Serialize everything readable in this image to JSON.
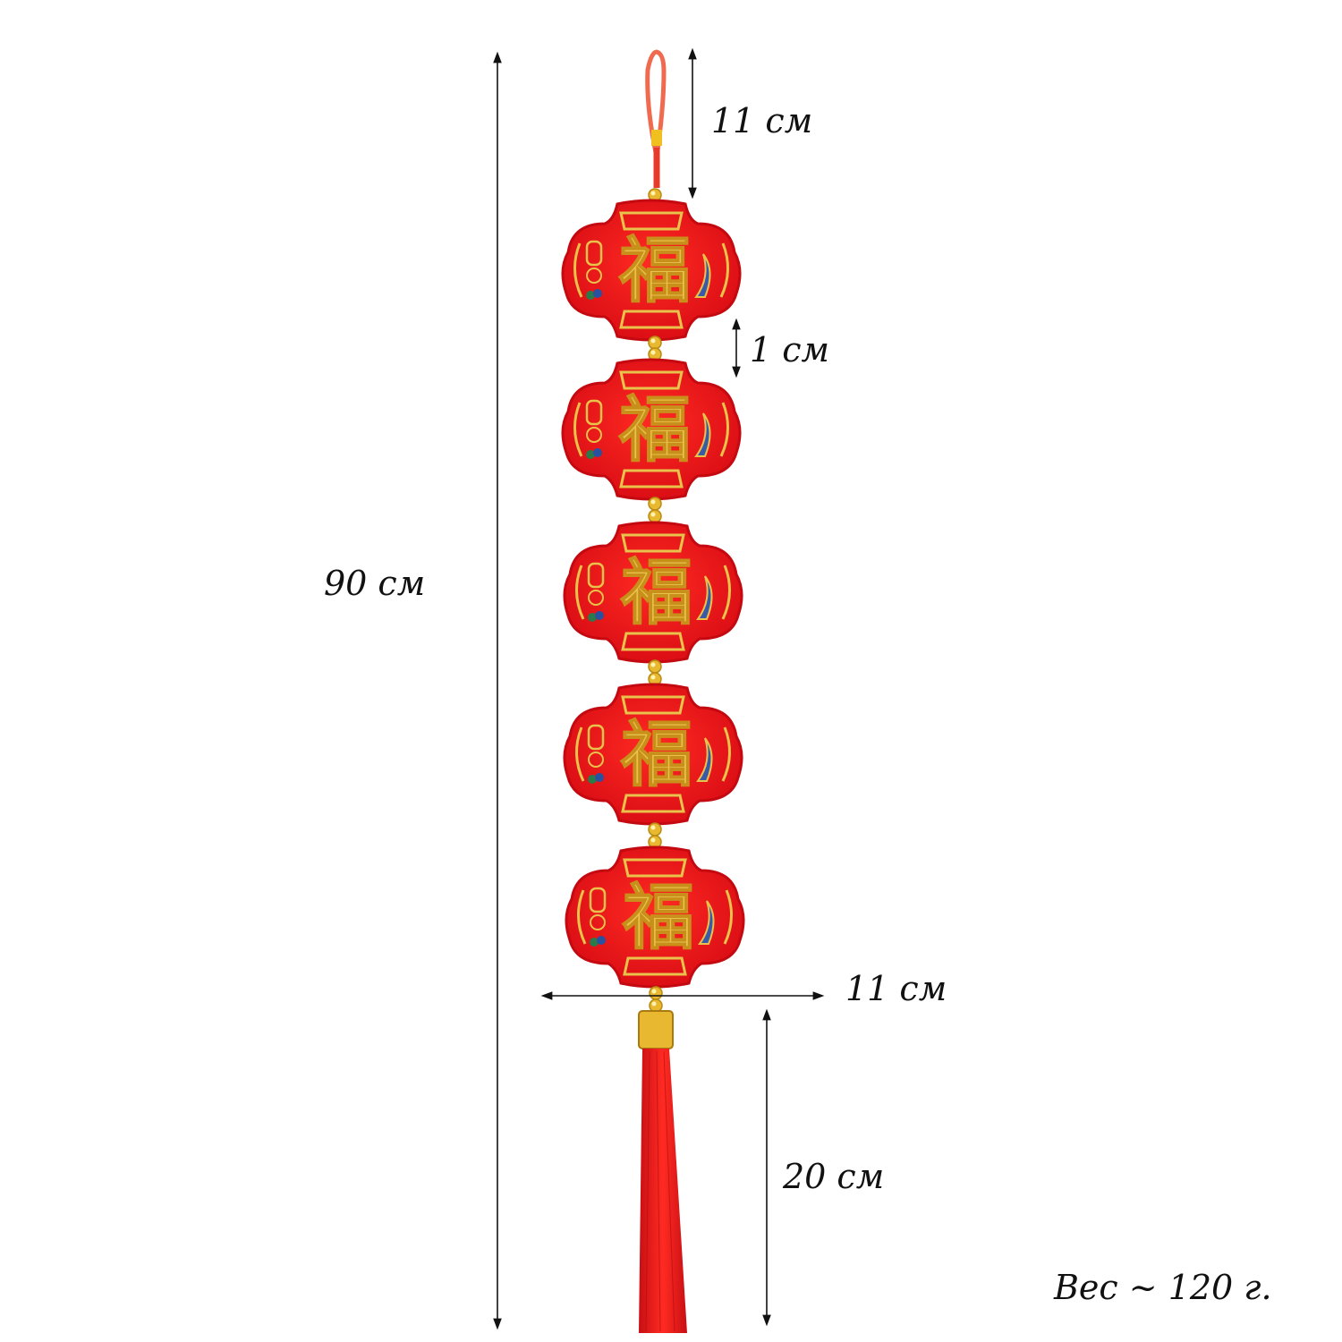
{
  "product": {
    "lantern_count": 5,
    "lantern_glyph": "福",
    "colors": {
      "lantern_red": "#e8141a",
      "gold": "#e8c24a",
      "tassel_red": "#e51b1b",
      "cord": "#f06a50"
    }
  },
  "dimensions": {
    "hanging_loop": "11 см",
    "gap": "1 см",
    "total_length": "90 см",
    "width": "11 см",
    "tassel": "20 см"
  },
  "weight": "Вес ~ 120 г."
}
